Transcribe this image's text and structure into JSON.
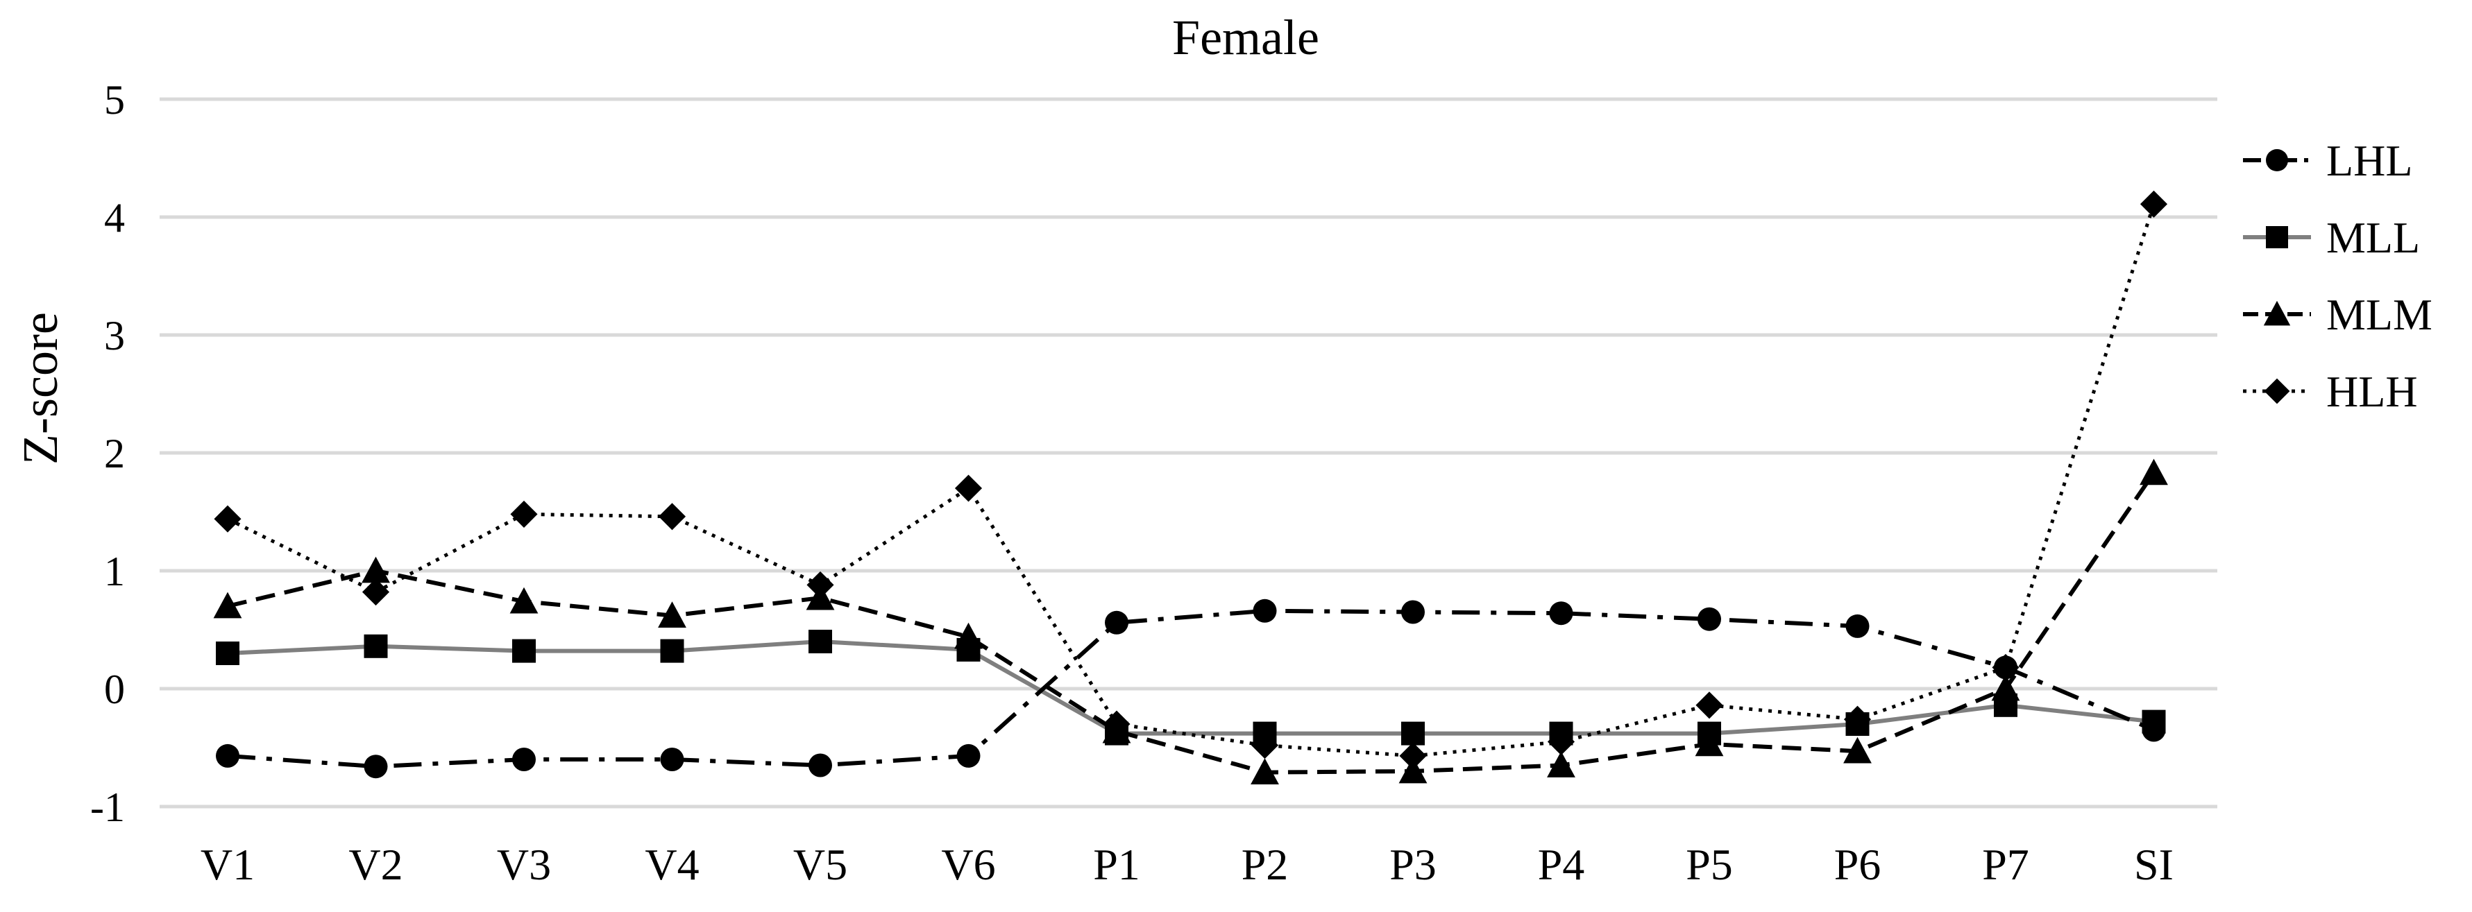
{
  "chart_data": {
    "type": "line",
    "title": "Female",
    "xlabel": "",
    "ylabel": "Z-score",
    "categories": [
      "V1",
      "V2",
      "V3",
      "V4",
      "V5",
      "V6",
      "P1",
      "P2",
      "P3",
      "P4",
      "P5",
      "P6",
      "P7",
      "SI"
    ],
    "ylim": [
      -1,
      5
    ],
    "yticks": [
      -1,
      0,
      1,
      2,
      3,
      4,
      5
    ],
    "ytick_labels": [
      "-1",
      "0",
      "1",
      "2",
      "3",
      "4",
      "5"
    ],
    "grid": true,
    "legend_position": "right",
    "series": [
      {
        "name": "LHL",
        "marker": "circle",
        "line_style": "dash-dot",
        "color": "#000000",
        "values": [
          -0.57,
          -0.66,
          -0.6,
          -0.6,
          -0.65,
          -0.57,
          0.56,
          0.66,
          0.65,
          0.64,
          0.59,
          0.53,
          0.18,
          -0.35
        ]
      },
      {
        "name": "MLL",
        "marker": "square",
        "line_style": "solid",
        "color": "#7f7f7f",
        "values": [
          0.3,
          0.36,
          0.32,
          0.32,
          0.4,
          0.33,
          -0.38,
          -0.38,
          -0.38,
          -0.38,
          -0.38,
          -0.3,
          -0.14,
          -0.28
        ]
      },
      {
        "name": "MLM",
        "marker": "triangle",
        "line_style": "dashed",
        "color": "#000000",
        "values": [
          0.7,
          1.0,
          0.74,
          0.62,
          0.77,
          0.44,
          -0.36,
          -0.71,
          -0.7,
          -0.65,
          -0.47,
          -0.53,
          0.0,
          1.83
        ]
      },
      {
        "name": "HLH",
        "marker": "diamond",
        "line_style": "dotted",
        "color": "#000000",
        "values": [
          1.44,
          0.82,
          1.48,
          1.46,
          0.88,
          1.7,
          -0.3,
          -0.48,
          -0.57,
          -0.45,
          -0.14,
          -0.26,
          0.18,
          4.11
        ]
      }
    ]
  }
}
